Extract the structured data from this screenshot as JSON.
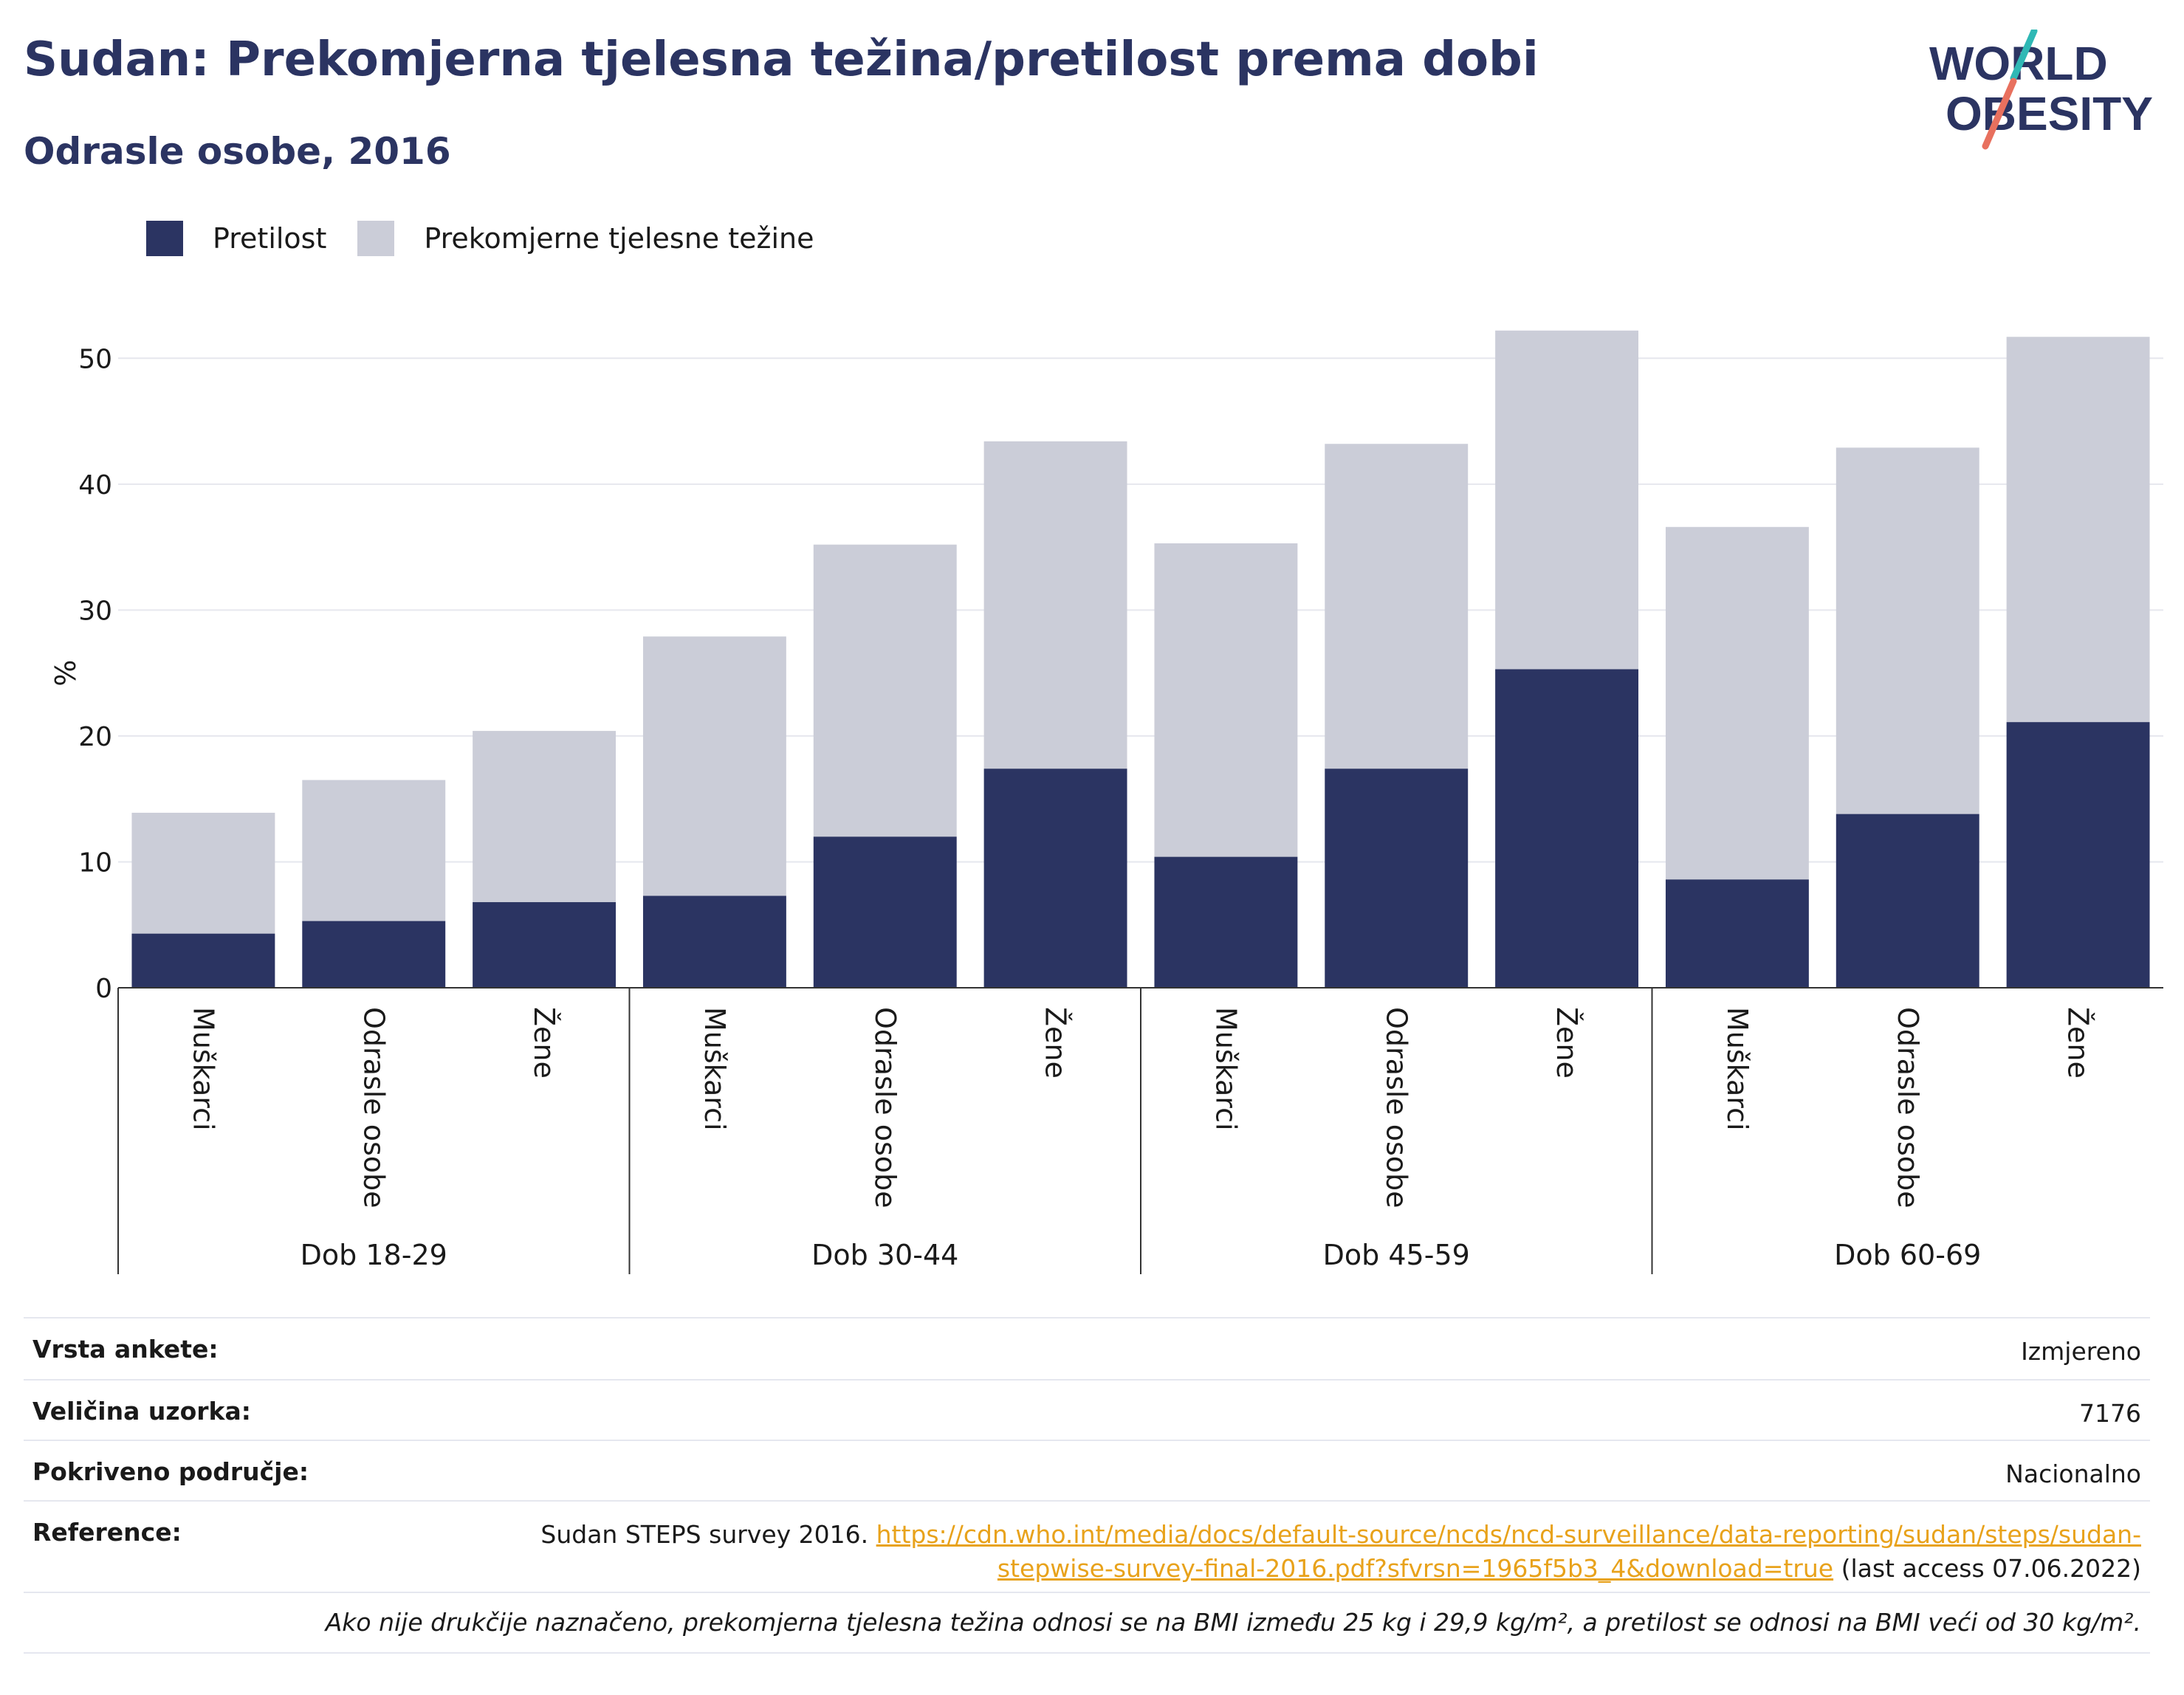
{
  "header": {
    "title": "Sudan: Prekomjerna tjelesna težina/pretilost prema dobi",
    "subtitle": "Odrasle osobe, 2016"
  },
  "logo": {
    "line1": "WORLD",
    "line2": "OBESITY",
    "colors": {
      "text": "#2b3462",
      "slash_teal": "#2fb8b5",
      "slash_coral": "#e8705e"
    }
  },
  "legend": [
    {
      "label": "Pretilost",
      "color": "#2b3462"
    },
    {
      "label": "Prekomjerne tjelesne težine",
      "color": "#cbcdd8"
    }
  ],
  "chart_data": {
    "type": "bar",
    "stacked": true,
    "ylabel": "%",
    "ylim": [
      0,
      55
    ],
    "yticks": [
      0,
      10,
      20,
      30,
      40,
      50
    ],
    "grid": true,
    "legend_position": "top-left",
    "groups": [
      "Dob 18-29",
      "Dob 30-44",
      "Dob 45-59",
      "Dob 60-69"
    ],
    "categories_per_group": [
      "Muškarci",
      "Odrasle osobe",
      "Žene"
    ],
    "series": [
      {
        "name": "Pretilost",
        "color": "#2b3462",
        "values": [
          4.3,
          5.3,
          6.8,
          7.3,
          12.0,
          17.4,
          10.4,
          17.4,
          25.3,
          8.6,
          13.8,
          21.1
        ]
      },
      {
        "name": "Prekomjerne tjelesne težine",
        "color": "#cbcdd8",
        "values": [
          9.6,
          11.2,
          13.6,
          20.6,
          23.2,
          26.0,
          24.9,
          25.8,
          26.9,
          28.0,
          29.1,
          30.6
        ]
      }
    ]
  },
  "info": {
    "survey_type": {
      "label": "Vrsta ankete:",
      "value": "Izmjereno"
    },
    "sample_size": {
      "label": "Veličina uzorka:",
      "value": "7176"
    },
    "coverage": {
      "label": "Pokriveno područje:",
      "value": "Nacionalno"
    },
    "reference": {
      "label": "Reference:",
      "prefix": "Sudan STEPS survey 2016.",
      "link_line1": "https://cdn.who.int/media/docs/default-source/ncds/ncd-surveillance/data-reporting/sudan/steps/sudan-",
      "link_line2": "stepwise-survey-final-2016.pdf?sfvrsn=1965f5b3_4&download=true",
      "suffix": "(last access 07.06.2022)"
    },
    "note": "Ako nije drukčije naznačeno, prekomjerna tjelesna težina odnosi se na BMI između 25 kg i 29,9 kg/m², a pretilost se odnosi na BMI veći od 30 kg/m²."
  }
}
